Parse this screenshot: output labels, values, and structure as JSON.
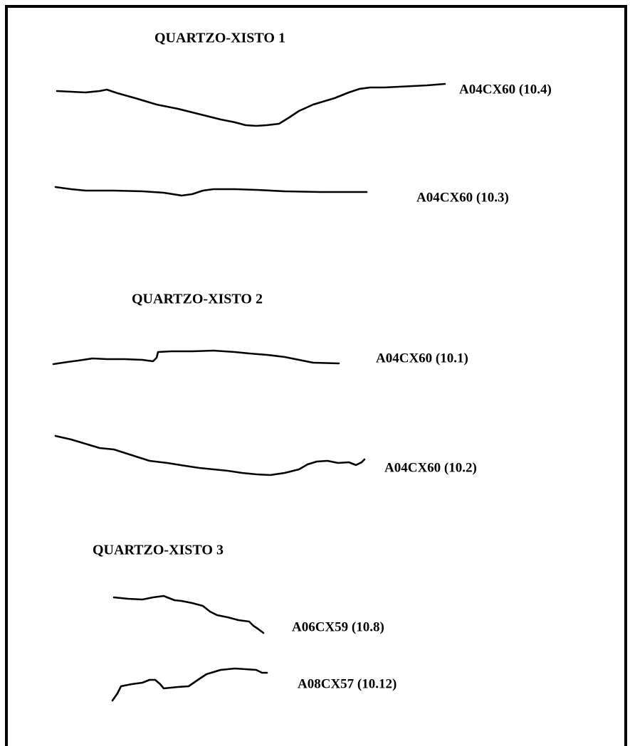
{
  "groups": [
    {
      "title": "QUARTZO-XISTO 1",
      "profiles": [
        {
          "label": "A04CX60 (10.4)"
        },
        {
          "label": "A04CX60 (10.3)"
        }
      ]
    },
    {
      "title": "QUARTZO-XISTO 2",
      "profiles": [
        {
          "label": "A04CX60 (10.1)"
        },
        {
          "label": "A04CX60 (10.2)"
        }
      ]
    },
    {
      "title": "QUARTZO-XISTO 3",
      "profiles": [
        {
          "label": "A06CX59 (10.8)"
        },
        {
          "label": "A08CX57 (10.12)"
        }
      ]
    }
  ]
}
